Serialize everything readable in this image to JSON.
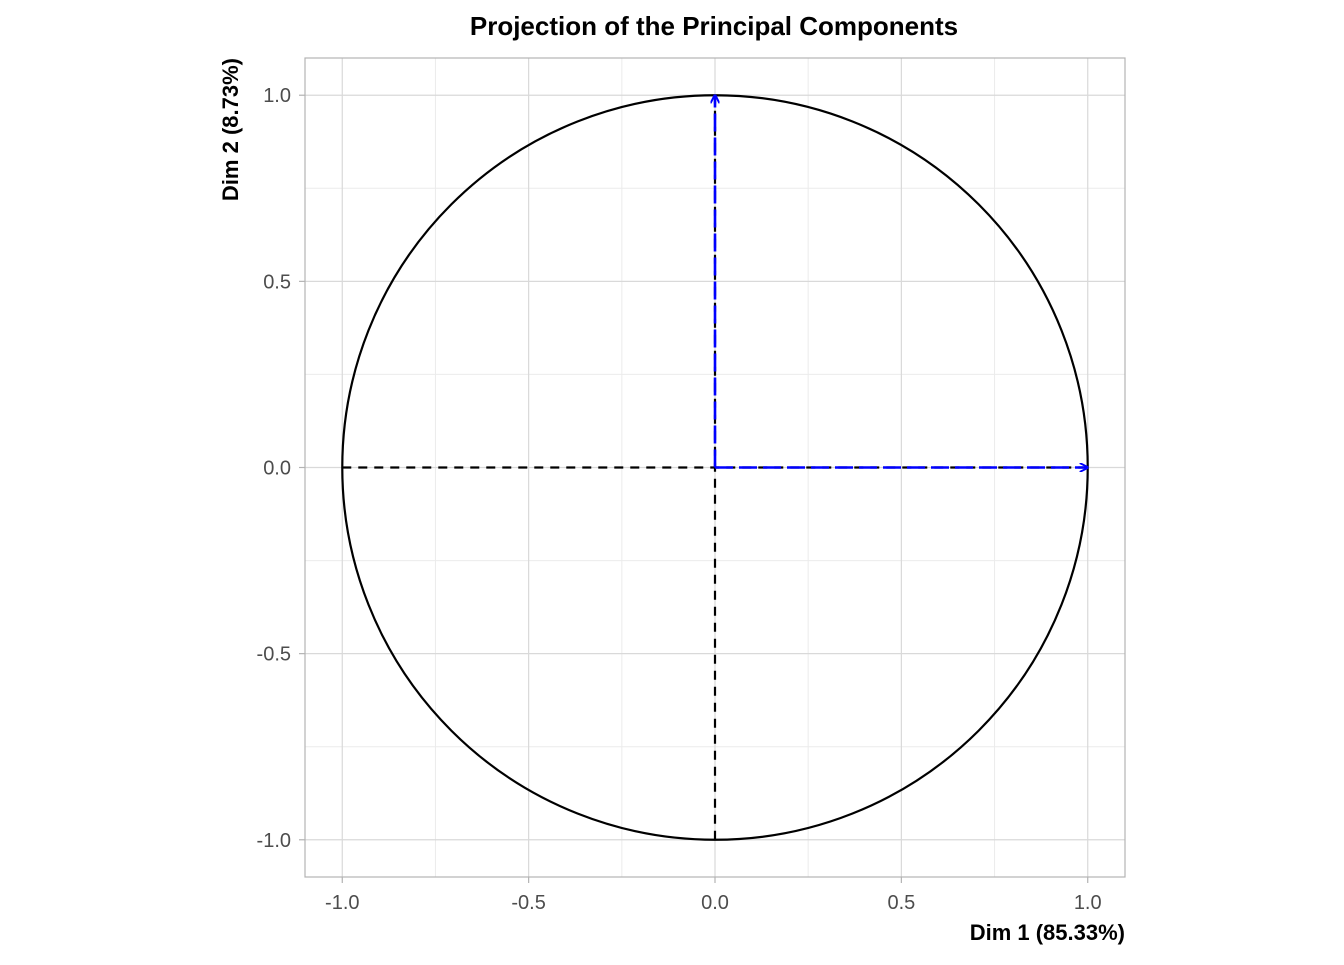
{
  "chart_data": {
    "type": "scatter",
    "title": "Projection of the Principal Components",
    "xlabel": "Dim 1 (85.33%)",
    "ylabel": "Dim 2 (8.73%)",
    "xlim": [
      -1.1,
      1.1
    ],
    "ylim": [
      -1.1,
      1.1
    ],
    "x_ticks": [
      -1.0,
      -0.5,
      0.0,
      0.5,
      1.0
    ],
    "y_ticks": [
      -1.0,
      -0.5,
      0.0,
      0.5,
      1.0
    ],
    "x_tick_labels": [
      "-1.0",
      "-0.5",
      "0.0",
      "0.5",
      "1.0"
    ],
    "y_tick_labels": [
      "-1.0",
      "-0.5",
      "0.0",
      "0.5",
      "1.0"
    ],
    "grid": true,
    "unit_circle": {
      "center": [
        0,
        0
      ],
      "radius": 1
    },
    "reference_lines": [
      {
        "x1": -1,
        "y1": 0,
        "x2": 1,
        "y2": 0,
        "style": "dashed",
        "color": "#000000"
      },
      {
        "x1": 0,
        "y1": -1,
        "x2": 0,
        "y2": 1,
        "style": "dashed",
        "color": "#000000"
      }
    ],
    "vectors": [
      {
        "x": 1.0,
        "y": 0.0,
        "color": "#0000ff",
        "style": "dashed"
      },
      {
        "x": 0.0,
        "y": 1.0,
        "color": "#0000ff",
        "style": "dashed"
      }
    ]
  }
}
